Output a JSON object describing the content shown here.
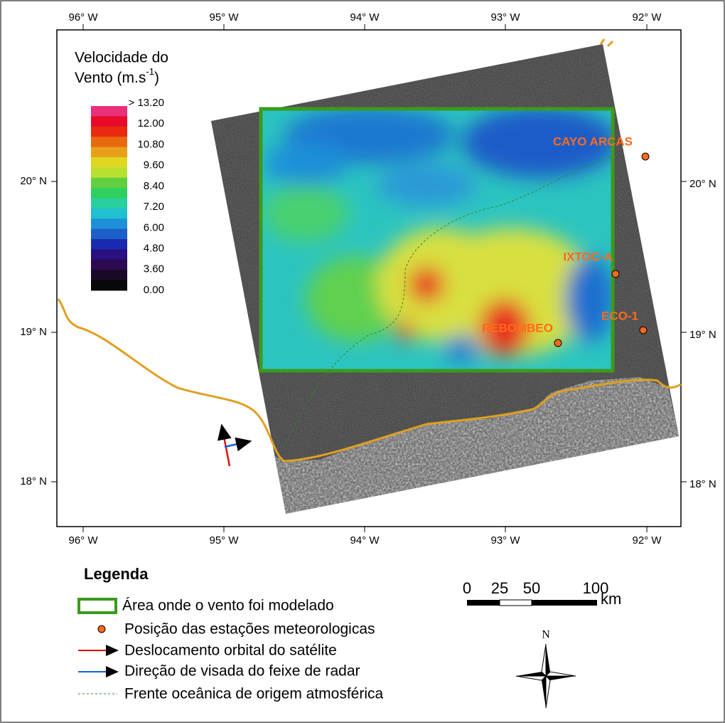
{
  "axes": {
    "top": [
      "96° W",
      "95° W",
      "94° W",
      "93° W",
      "92° W"
    ],
    "bottom": [
      "96° W",
      "95° W",
      "94° W",
      "93° W",
      "92° W"
    ],
    "left": [
      "20° N",
      "19° N",
      "18° N"
    ],
    "right": [
      "20° N",
      "19° N",
      "18° N"
    ]
  },
  "colorbar": {
    "title_line1": "Velocidade do",
    "title_line2": "Vento (m.s",
    "title_superscript": "-1",
    "title_closing": ")",
    "labels": [
      "> 13.20",
      "12.00",
      "10.80",
      "9.60",
      "8.40",
      "7.20",
      "6.00",
      "4.80",
      "3.60",
      "0.00"
    ]
  },
  "stations": [
    "CAYO ARCAS",
    "IXTOC-A",
    "ECO-1",
    "REBOMBEO"
  ],
  "legend": {
    "title": "Legenda",
    "items": [
      "Área onde o vento foi modelado",
      "Posição das estações meteorologicas",
      "Deslocamento orbital do satélite",
      "Direção de visada do feixe de radar",
      "Frente oceânica de origem atmosférica"
    ]
  },
  "scale_bar": {
    "labels": [
      "0",
      "25",
      "50",
      "100"
    ],
    "unit": "km"
  },
  "compass": "N"
}
